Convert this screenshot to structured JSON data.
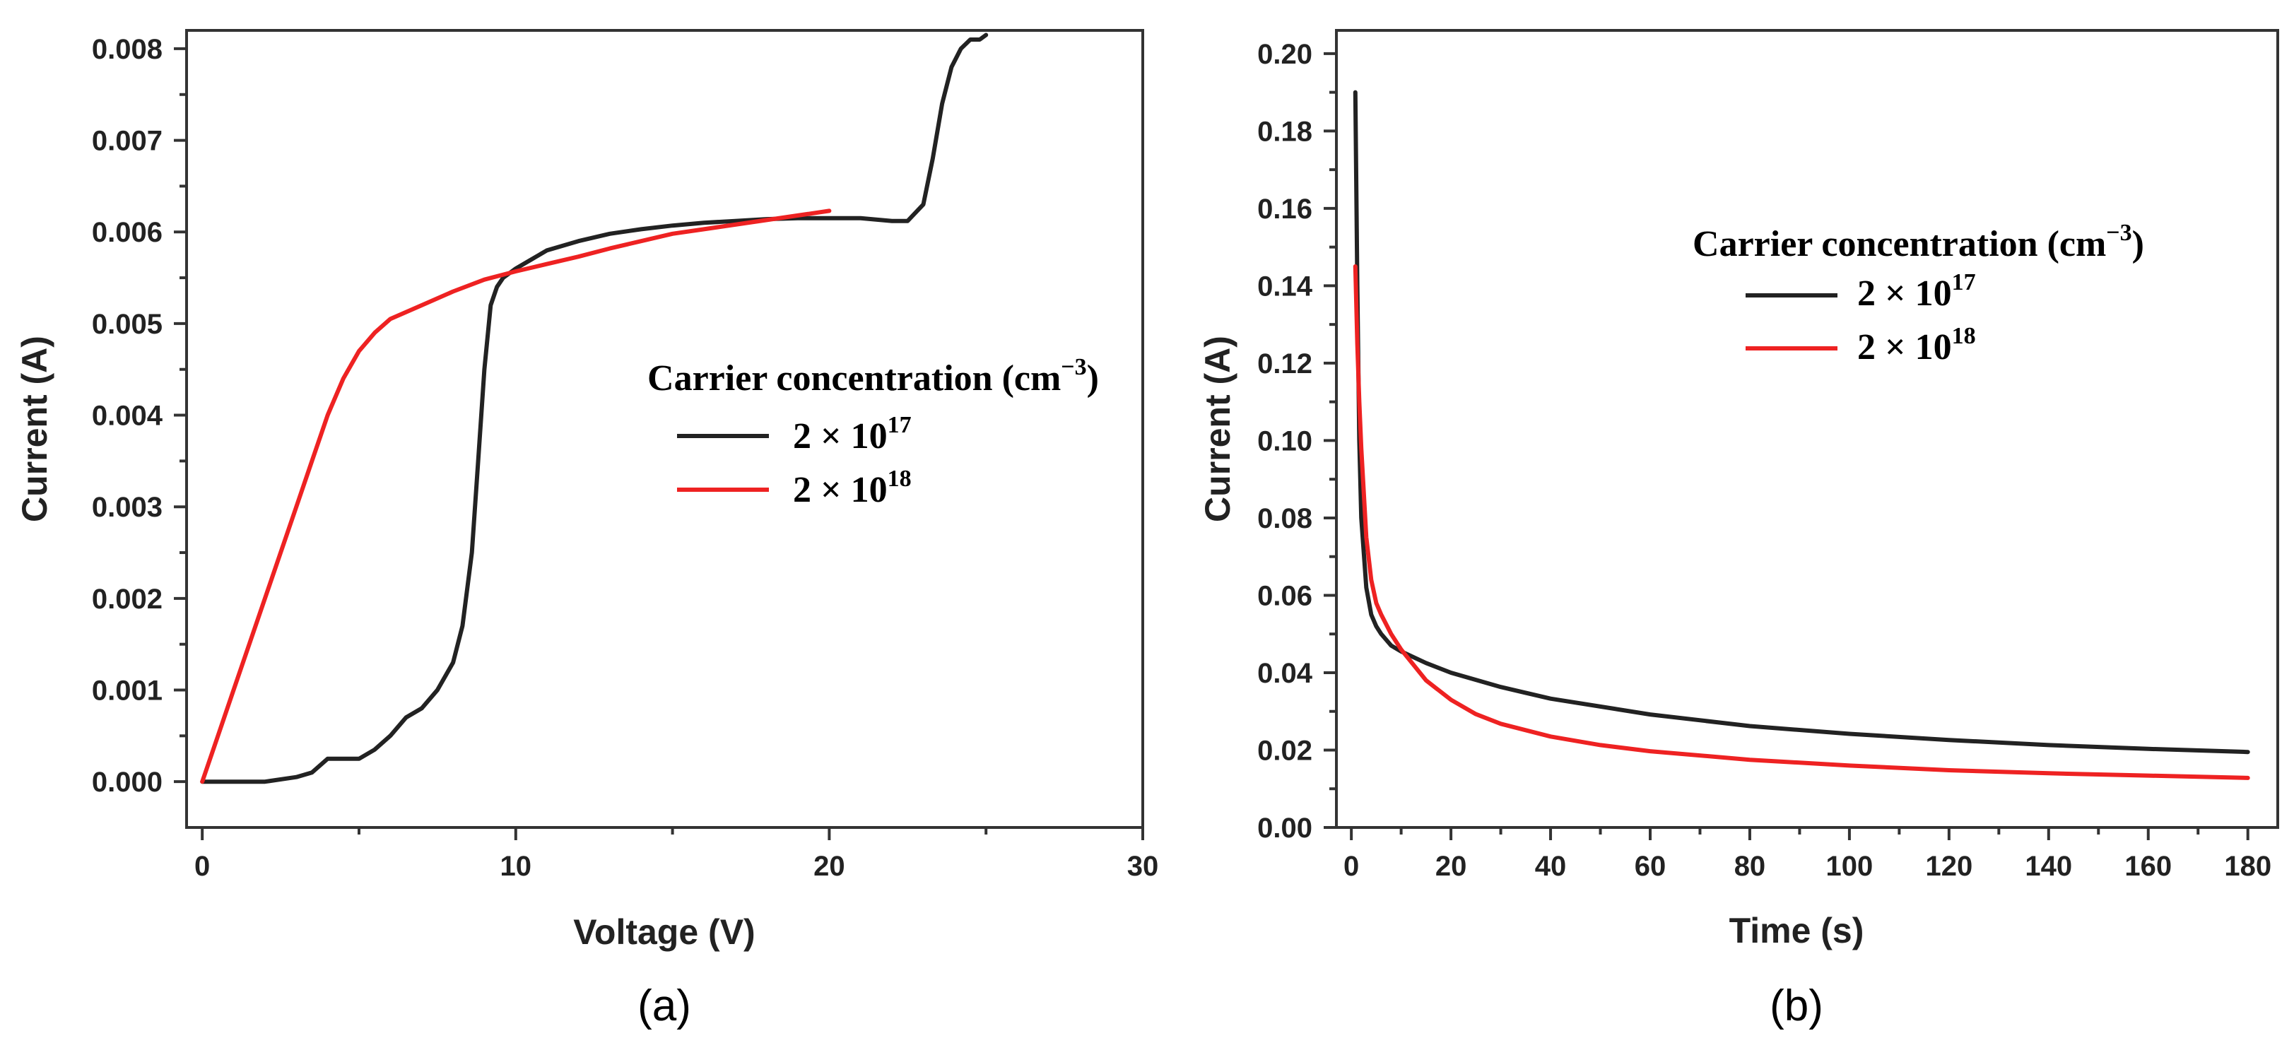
{
  "colors": {
    "black_series": "#222222",
    "red_series": "#ee2222"
  },
  "chart_data": [
    {
      "type": "line",
      "panel_label": "(a)",
      "xlabel": "Voltage (V)",
      "ylabel": "Current (A)",
      "xlim": [
        -0.5,
        30
      ],
      "ylim": [
        -0.0005,
        0.0082
      ],
      "xticks": [
        0,
        10,
        20,
        30
      ],
      "yticks": [
        0.0,
        0.001,
        0.002,
        0.003,
        0.004,
        0.005,
        0.006,
        0.007,
        0.008
      ],
      "ytick_decimals": 3,
      "legend": {
        "title": "Carrier concentration (cm",
        "title_sup": "−3",
        "title_close": ")",
        "placement": "center-right"
      },
      "series": [
        {
          "name": "2 × 10",
          "name_sup": "17",
          "color": "#222222",
          "x": [
            0,
            1,
            2,
            3,
            3.5,
            4,
            4.5,
            5,
            5.5,
            6,
            6.5,
            7,
            7.5,
            8,
            8.3,
            8.6,
            8.8,
            9.0,
            9.2,
            9.4,
            9.6,
            10,
            10.5,
            11,
            12,
            13,
            14,
            15,
            16,
            17,
            18,
            19,
            20,
            21,
            22,
            22.5,
            23,
            23.3,
            23.6,
            23.9,
            24.2,
            24.5,
            24.8,
            25
          ],
          "y": [
            0.0,
            0.0,
            0.0,
            5e-05,
            0.0001,
            0.00025,
            0.00025,
            0.00025,
            0.00035,
            0.0005,
            0.0007,
            0.0008,
            0.001,
            0.0013,
            0.0017,
            0.0025,
            0.0035,
            0.0045,
            0.0052,
            0.0054,
            0.0055,
            0.0056,
            0.0057,
            0.0058,
            0.0059,
            0.00598,
            0.00603,
            0.00607,
            0.0061,
            0.00612,
            0.00614,
            0.00615,
            0.00615,
            0.00615,
            0.00612,
            0.00612,
            0.0063,
            0.0068,
            0.0074,
            0.0078,
            0.008,
            0.0081,
            0.0081,
            0.00815
          ]
        },
        {
          "name": "2 × 10",
          "name_sup": "18",
          "color": "#ee2222",
          "x": [
            0,
            0.5,
            1,
            1.5,
            2,
            2.5,
            3,
            3.5,
            4,
            4.5,
            5,
            5.5,
            6,
            7,
            8,
            9,
            10,
            11,
            12,
            13,
            14,
            15,
            16,
            17,
            18,
            19,
            20
          ],
          "y": [
            0.0,
            0.0005,
            0.001,
            0.0015,
            0.002,
            0.0025,
            0.003,
            0.0035,
            0.004,
            0.0044,
            0.0047,
            0.0049,
            0.00505,
            0.0052,
            0.00535,
            0.00548,
            0.00557,
            0.00565,
            0.00573,
            0.00582,
            0.0059,
            0.00598,
            0.00603,
            0.00608,
            0.00613,
            0.00618,
            0.00623
          ]
        }
      ]
    },
    {
      "type": "line",
      "panel_label": "(b)",
      "xlabel": "Time (s)",
      "ylabel": "Current (A)",
      "xlim": [
        -3,
        186
      ],
      "ylim": [
        0.0,
        0.206
      ],
      "xticks": [
        0,
        20,
        40,
        60,
        80,
        100,
        120,
        140,
        160,
        180
      ],
      "yticks": [
        0.0,
        0.02,
        0.04,
        0.06,
        0.08,
        0.1,
        0.12,
        0.14,
        0.16,
        0.18,
        0.2
      ],
      "ytick_decimals": 2,
      "legend": {
        "title": "Carrier concentration (cm",
        "title_sup": "−3",
        "title_close": ")",
        "placement": "upper-right"
      },
      "series": [
        {
          "name": "2 × 10",
          "name_sup": "17",
          "color": "#222222",
          "x": [
            0.8,
            1.2,
            1.6,
            2,
            3,
            4,
            5,
            6,
            8,
            10,
            15,
            20,
            30,
            40,
            60,
            80,
            100,
            120,
            140,
            160,
            180
          ],
          "y": [
            0.19,
            0.14,
            0.1,
            0.08,
            0.062,
            0.055,
            0.052,
            0.05,
            0.047,
            0.0455,
            0.0425,
            0.04,
            0.0363,
            0.0333,
            0.0292,
            0.0262,
            0.0242,
            0.0226,
            0.0213,
            0.0203,
            0.0195
          ]
        },
        {
          "name": "2 × 10",
          "name_sup": "18",
          "color": "#ee2222",
          "x": [
            0.8,
            1.2,
            1.6,
            2,
            3,
            4,
            5,
            6,
            8,
            10,
            15,
            20,
            25,
            30,
            40,
            50,
            60,
            80,
            100,
            120,
            140,
            160,
            180
          ],
          "y": [
            0.145,
            0.125,
            0.11,
            0.098,
            0.075,
            0.064,
            0.058,
            0.055,
            0.05,
            0.046,
            0.038,
            0.033,
            0.0293,
            0.0268,
            0.0235,
            0.0213,
            0.0197,
            0.0175,
            0.016,
            0.0148,
            0.014,
            0.0134,
            0.0128
          ]
        }
      ]
    }
  ]
}
